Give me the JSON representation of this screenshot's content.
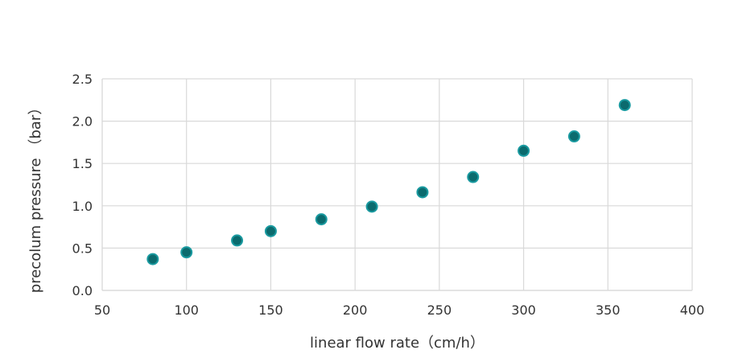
{
  "chart_data": {
    "type": "scatter",
    "title": "",
    "xlabel": "linear flow rate（cm/h）",
    "ylabel": "precolum pressure （bar）",
    "xlim": [
      50,
      400
    ],
    "ylim": [
      0,
      2.5
    ],
    "xticks": [
      50,
      100,
      150,
      200,
      250,
      300,
      350,
      400
    ],
    "yticks": [
      0.0,
      0.5,
      1.0,
      1.5,
      2.0,
      2.5
    ],
    "xtick_labels": [
      "50",
      "100",
      "150",
      "200",
      "250",
      "300",
      "350",
      "400"
    ],
    "ytick_labels": [
      "0.0",
      "0.5",
      "1.0",
      "1.5",
      "2.0",
      "2.5"
    ],
    "grid": true,
    "series": [
      {
        "marker_color": "#0b6b6e",
        "marker_edge_color": "#1a9aa0",
        "x": [
          80,
          100,
          130,
          150,
          180,
          210,
          240,
          270,
          300,
          330,
          360
        ],
        "y": [
          0.37,
          0.45,
          0.59,
          0.7,
          0.84,
          0.99,
          1.16,
          1.34,
          1.65,
          1.82,
          2.19
        ]
      }
    ]
  }
}
